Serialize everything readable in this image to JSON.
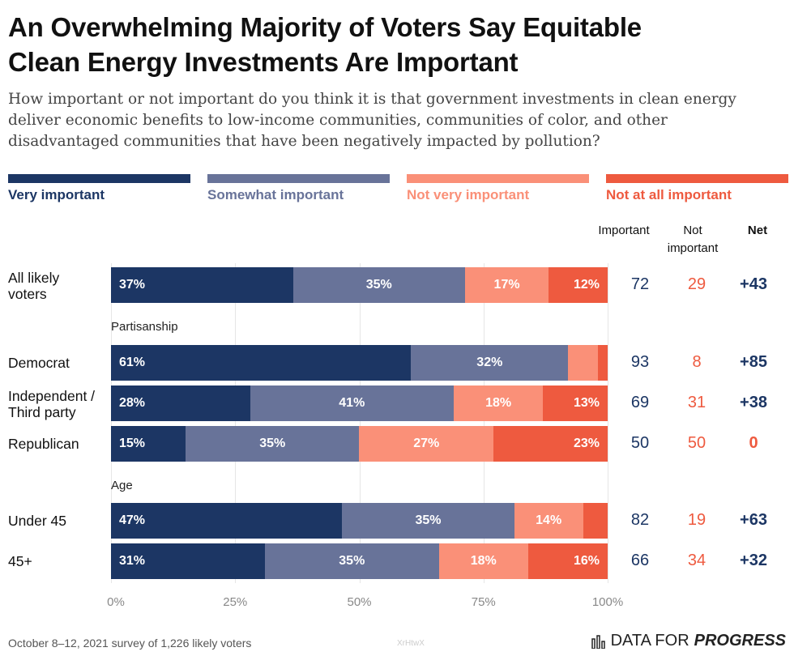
{
  "title_line1": "An Overwhelming Majority of Voters Say Equitable",
  "title_line2": "Clean Energy Investments Are Important",
  "subtitle": "How important or not important do you think it is that government investments in clean energy deliver economic benefits to low-income communities, communities of color, and other disadvantaged communities that have been negatively impacted by pollution?",
  "colors": {
    "very": "#1c3664",
    "somewhat": "#687399",
    "not_very": "#fa9078",
    "not_at_all": "#ee5a3f",
    "important_text": "#1c3664",
    "not_important_text": "#ee5a3f"
  },
  "legend": [
    "Very important",
    "Somewhat important",
    "Not very important",
    "Not at all important"
  ],
  "columns": {
    "important": "Important",
    "not_important": "Not important",
    "net": "Net"
  },
  "groups": {
    "partisanship": "Partisanship",
    "age": "Age"
  },
  "chart_data": {
    "type": "bar",
    "orientation": "horizontal",
    "stacked": true,
    "categories": [
      "All likely voters",
      "Democrat",
      "Independent / Third party",
      "Republican",
      "Under 45",
      "45+"
    ],
    "series": [
      {
        "name": "Very important",
        "values": [
          37,
          61,
          28,
          15,
          47,
          31
        ]
      },
      {
        "name": "Somewhat important",
        "values": [
          35,
          32,
          41,
          35,
          35,
          35
        ]
      },
      {
        "name": "Not very important",
        "values": [
          17,
          6,
          18,
          27,
          14,
          18
        ]
      },
      {
        "name": "Not at all important",
        "values": [
          12,
          2,
          13,
          23,
          5,
          16
        ]
      }
    ],
    "shown_labels": [
      [
        "37%",
        "35%",
        "17%",
        "12%"
      ],
      [
        "61%",
        "32%",
        "",
        ""
      ],
      [
        "28%",
        "41%",
        "18%",
        "13%"
      ],
      [
        "15%",
        "35%",
        "27%",
        "23%"
      ],
      [
        "47%",
        "35%",
        "14%",
        ""
      ],
      [
        "31%",
        "35%",
        "18%",
        "16%"
      ]
    ],
    "important": [
      72,
      93,
      69,
      50,
      82,
      66
    ],
    "not_important": [
      29,
      8,
      31,
      50,
      19,
      34
    ],
    "net": [
      "+43",
      "+85",
      "+38",
      "0",
      "+63",
      "+32"
    ],
    "xlim": [
      0,
      100
    ],
    "xticks": [
      "0%",
      "25%",
      "50%",
      "75%",
      "100%"
    ]
  },
  "footer": {
    "source": "October 8–12, 2021 survey of 1,226 likely voters",
    "watermark": "XrHtwX",
    "brand_prefix": "DATA FOR",
    "brand_suffix": "PROGRESS"
  }
}
